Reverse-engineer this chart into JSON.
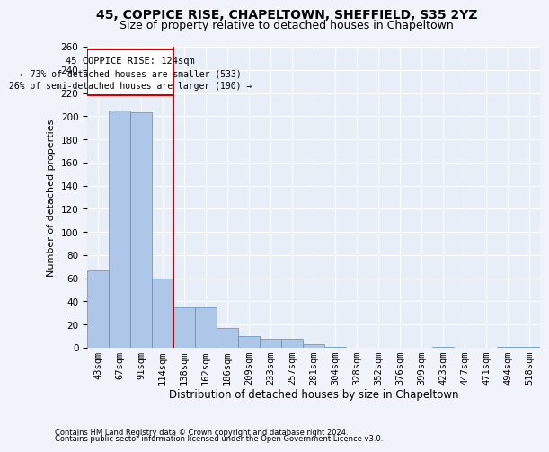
{
  "title1": "45, COPPICE RISE, CHAPELTOWN, SHEFFIELD, S35 2YZ",
  "title2": "Size of property relative to detached houses in Chapeltown",
  "xlabel": "Distribution of detached houses by size in Chapeltown",
  "ylabel": "Number of detached properties",
  "footnote1": "Contains HM Land Registry data © Crown copyright and database right 2024.",
  "footnote2": "Contains public sector information licensed under the Open Government Licence v3.0.",
  "annotation_line1": "45 COPPICE RISE: 124sqm",
  "annotation_line2": "← 73% of detached houses are smaller (533)",
  "annotation_line3": "26% of semi-detached houses are larger (190) →",
  "bar_labels": [
    "43sqm",
    "67sqm",
    "91sqm",
    "114sqm",
    "138sqm",
    "162sqm",
    "186sqm",
    "209sqm",
    "233sqm",
    "257sqm",
    "281sqm",
    "304sqm",
    "328sqm",
    "352sqm",
    "376sqm",
    "399sqm",
    "423sqm",
    "447sqm",
    "471sqm",
    "494sqm",
    "518sqm"
  ],
  "bar_values": [
    67,
    205,
    203,
    60,
    35,
    35,
    17,
    10,
    8,
    8,
    3,
    1,
    0,
    0,
    0,
    0,
    1,
    0,
    0,
    1,
    1
  ],
  "bar_color": "#aec6e8",
  "bar_edge_color": "#5a8fc0",
  "vline_x": 3.5,
  "vline_color": "#cc0000",
  "box_color": "#cc0000",
  "ylim": [
    0,
    260
  ],
  "yticks": [
    0,
    20,
    40,
    60,
    80,
    100,
    120,
    140,
    160,
    180,
    200,
    220,
    240,
    260
  ],
  "bg_color": "#e8eef7",
  "grid_color": "#ffffff",
  "title1_fontsize": 10,
  "title2_fontsize": 9,
  "xlabel_fontsize": 8.5,
  "ylabel_fontsize": 8,
  "footnote_fontsize": 6,
  "tick_fontsize": 7.5
}
